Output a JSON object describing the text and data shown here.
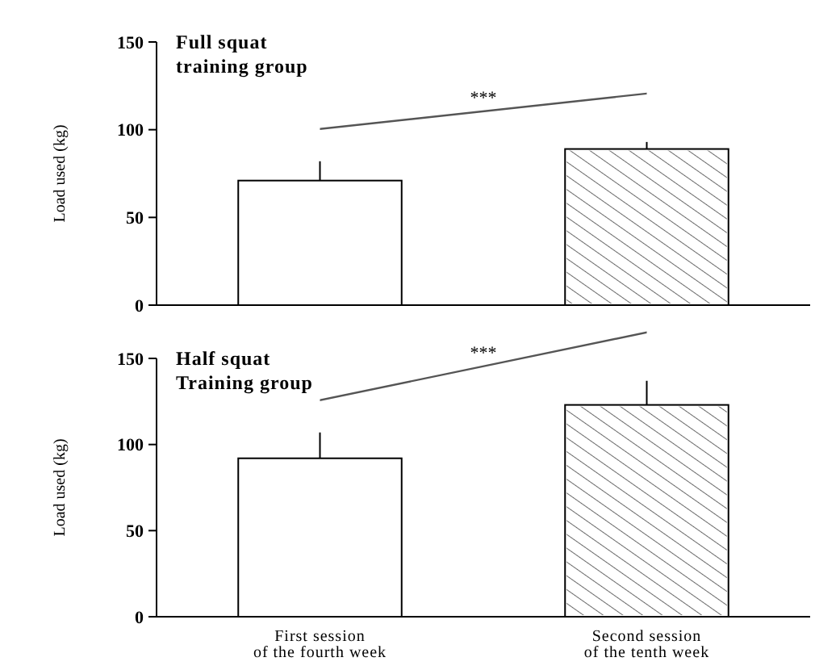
{
  "chart_data": [
    {
      "type": "bar",
      "title": "Full squat\ntraining group",
      "ylabel": "Load used (kg)",
      "categories": [
        null,
        null
      ],
      "values": [
        71,
        89
      ],
      "errors": [
        11,
        4
      ],
      "colors": [
        "#ffffff",
        "#ffffff"
      ],
      "ylim": [
        0,
        150
      ],
      "yticks": [
        0,
        50,
        100,
        150
      ],
      "tick_labels": "y",
      "annotations": [
        "***"
      ]
    },
    {
      "type": "bar",
      "title": "Half squat\nTraining group",
      "ylabel": "Load used (kg)",
      "categories": [
        "First session\nof the fourth week",
        "Second session\nof the tenth week"
      ],
      "values": [
        92,
        123
      ],
      "errors": [
        15,
        14
      ],
      "colors": [
        "#ffffff",
        "#ffffff"
      ],
      "ylim": [
        0,
        150
      ],
      "yticks": [
        0,
        50,
        100,
        150
      ],
      "annotations": [
        "***"
      ]
    }
  ]
}
